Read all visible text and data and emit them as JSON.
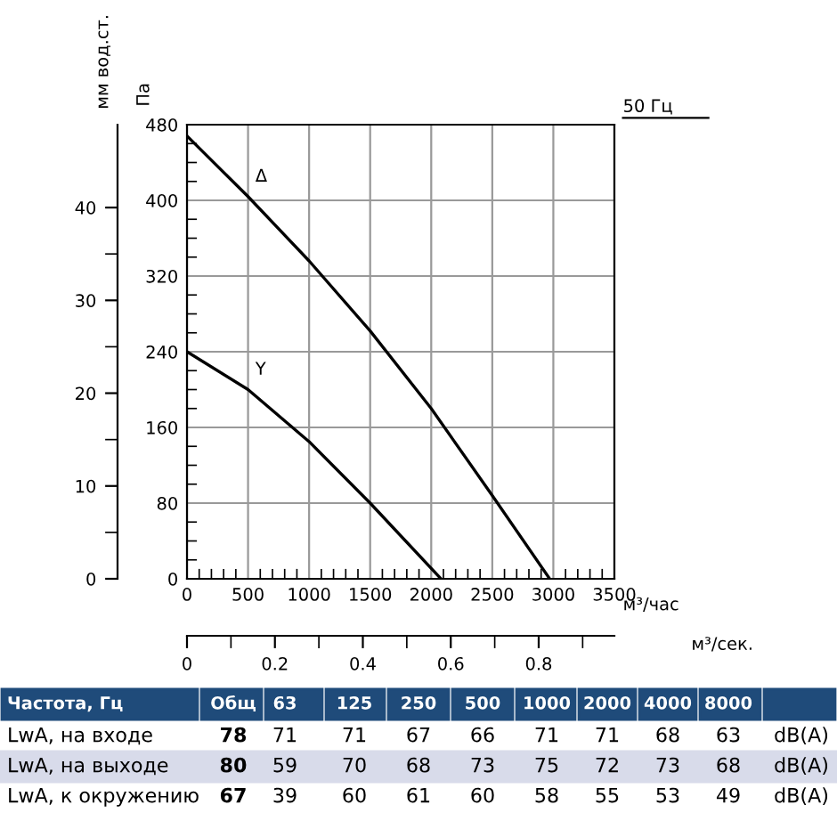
{
  "chart_data": [
    {
      "type": "line",
      "ylabel": "Па",
      "y2label": "мм вод.ст.",
      "xlabel": "м³/час",
      "x2label": "м³/сек.",
      "xlim": [
        0,
        3500
      ],
      "xticks": [
        0,
        500,
        1000,
        1500,
        2000,
        2500,
        3000,
        3500
      ],
      "ylim": [
        0,
        480
      ],
      "yticks": [
        0,
        80,
        160,
        240,
        320,
        400,
        480
      ],
      "y2lim": [
        0,
        48.93
      ],
      "y2ticks": [
        0,
        10,
        20,
        30,
        40
      ],
      "x2lim": [
        0,
        0.9722
      ],
      "x2ticks": [
        0,
        0.2,
        0.4,
        0.6,
        0.8
      ],
      "grid": true,
      "legend": false,
      "marker": "none",
      "line_style": "solid",
      "annotations": [
        "50 Гц"
      ],
      "series": [
        {
          "name": "Δ",
          "color": "#000000",
          "x": [
            0,
            500,
            1000,
            1500,
            2000,
            2500,
            2970
          ],
          "values": [
            468,
            404,
            336,
            262,
            180,
            88,
            0
          ]
        },
        {
          "name": "Y",
          "color": "#000000",
          "x": [
            0,
            500,
            1000,
            1500,
            2080
          ],
          "values": [
            240,
            200,
            145,
            80,
            0
          ]
        }
      ]
    },
    {
      "type": "other",
      "categories": [
        "Частота, Гц",
        "Общ",
        "63",
        "125",
        "250",
        "500",
        "1000",
        "2000",
        "4000",
        "8000",
        null
      ],
      "annotations": [
        "LwA, на входе",
        "78",
        "71",
        "71",
        "67",
        "66",
        "71",
        "71",
        "68",
        "63",
        "dB(A)",
        "LwA, на выходе",
        "80",
        "59",
        "70",
        "68",
        "73",
        "75",
        "72",
        "73",
        "68",
        "dB(A)",
        "LwA, к окружению",
        "67",
        "39",
        "60",
        "61",
        "60",
        "58",
        "55",
        "53",
        "49",
        "dB(A)"
      ]
    }
  ]
}
